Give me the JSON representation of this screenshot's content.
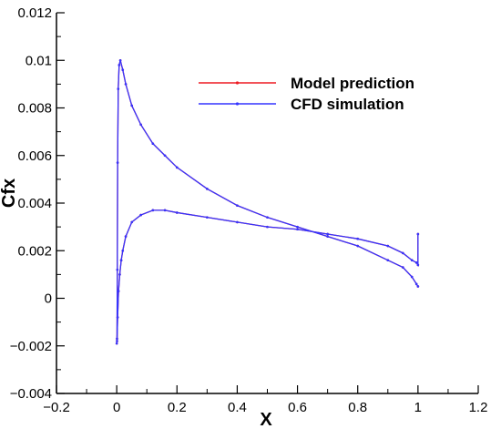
{
  "chart_data": {
    "type": "line",
    "title": "",
    "xlabel": "X",
    "ylabel": "Cfx",
    "xlim": [
      -0.2,
      1.2
    ],
    "ylim": [
      -0.004,
      0.012
    ],
    "grid": false,
    "legend_position": "top-right",
    "x_ticks": [
      -0.2,
      0,
      0.2,
      0.4,
      0.6,
      0.8,
      1,
      1.2
    ],
    "x_tick_labels": [
      "−0.2",
      "0",
      "0.2",
      "0.4",
      "0.6",
      "0.8",
      "1",
      "1.2"
    ],
    "y_ticks": [
      -0.004,
      -0.002,
      0,
      0.002,
      0.004,
      0.006,
      0.008,
      0.01,
      0.012
    ],
    "y_tick_labels": [
      "−0.004",
      "−0.002",
      "0",
      "0.002",
      "0.004",
      "0.006",
      "0.008",
      "0.01",
      "0.012"
    ],
    "series": [
      {
        "name": "Model prediction",
        "color": "#ee1c24",
        "x": [
          0.0,
          0.001,
          0.002,
          0.003,
          0.005,
          0.008,
          0.012,
          0.02,
          0.03,
          0.05,
          0.08,
          0.12,
          0.16,
          0.2,
          0.3,
          0.4,
          0.5,
          0.6,
          0.7,
          0.8,
          0.9,
          0.95,
          0.98,
          0.995,
          1.0
        ],
        "y": [
          -0.0019,
          -0.0017,
          0.0012,
          0.0057,
          0.0088,
          0.0098,
          0.01,
          0.0096,
          0.009,
          0.0081,
          0.0073,
          0.0065,
          0.006,
          0.0055,
          0.0046,
          0.0039,
          0.0034,
          0.003,
          0.0026,
          0.0022,
          0.0016,
          0.0013,
          0.0009,
          0.0006,
          0.0005
        ]
      },
      {
        "name": "Model prediction",
        "color": "#ee1c24",
        "x": [
          0.001,
          0.003,
          0.006,
          0.01,
          0.015,
          0.02,
          0.03,
          0.05,
          0.08,
          0.12,
          0.16,
          0.2,
          0.3,
          0.4,
          0.5,
          0.6,
          0.7,
          0.8,
          0.9,
          0.95,
          0.98,
          0.995,
          1.0,
          1.0
        ],
        "y": [
          -0.0018,
          -0.0008,
          0.0003,
          0.001,
          0.0016,
          0.002,
          0.0026,
          0.0032,
          0.0035,
          0.0037,
          0.0037,
          0.0036,
          0.0034,
          0.0032,
          0.003,
          0.0029,
          0.0027,
          0.0025,
          0.0022,
          0.0019,
          0.0016,
          0.0015,
          0.0014,
          0.0027
        ]
      },
      {
        "name": "CFD simulation",
        "color": "#3535ff",
        "x": [
          0.0,
          0.001,
          0.002,
          0.003,
          0.005,
          0.008,
          0.012,
          0.02,
          0.03,
          0.05,
          0.08,
          0.12,
          0.16,
          0.2,
          0.3,
          0.4,
          0.5,
          0.6,
          0.7,
          0.8,
          0.9,
          0.95,
          0.98,
          0.995,
          1.0
        ],
        "y": [
          -0.0019,
          -0.0017,
          0.0012,
          0.0057,
          0.0088,
          0.0098,
          0.01,
          0.0096,
          0.009,
          0.0081,
          0.0073,
          0.0065,
          0.006,
          0.0055,
          0.0046,
          0.0039,
          0.0034,
          0.003,
          0.0026,
          0.0022,
          0.0016,
          0.0013,
          0.0009,
          0.0006,
          0.0005
        ]
      },
      {
        "name": "CFD simulation",
        "color": "#3535ff",
        "x": [
          0.001,
          0.003,
          0.006,
          0.01,
          0.015,
          0.02,
          0.03,
          0.05,
          0.08,
          0.12,
          0.16,
          0.2,
          0.3,
          0.4,
          0.5,
          0.6,
          0.7,
          0.8,
          0.9,
          0.95,
          0.98,
          0.995,
          1.0,
          1.0
        ],
        "y": [
          -0.0018,
          -0.0008,
          0.0003,
          0.001,
          0.0016,
          0.002,
          0.0026,
          0.0032,
          0.0035,
          0.0037,
          0.0037,
          0.0036,
          0.0034,
          0.0032,
          0.003,
          0.0029,
          0.0027,
          0.0025,
          0.0022,
          0.0019,
          0.0016,
          0.0015,
          0.0014,
          0.0027
        ]
      }
    ],
    "legend": [
      {
        "label": "Model prediction",
        "color": "#ee1c24"
      },
      {
        "label": "CFD simulation",
        "color": "#3535ff"
      }
    ]
  }
}
